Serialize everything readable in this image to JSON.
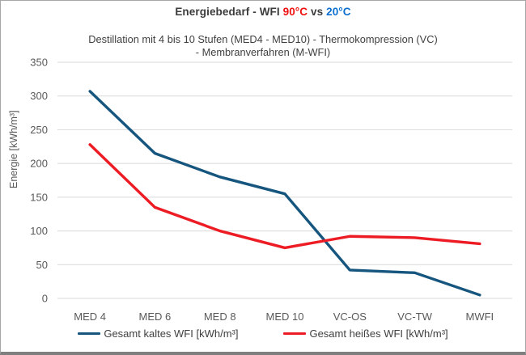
{
  "title": {
    "prefix": "Energiebedarf - WFI ",
    "hot": "90°C",
    "vs": " vs ",
    "cold": "20°C",
    "hot_color": "#ee1111",
    "cold_color": "#0b6fd0",
    "base_color": "#3b3b3b"
  },
  "subtitle": {
    "line1": "Destillation mit 4 bis 10 Stufen (MED4 - MED10) - Thermokompression (VC)",
    "line2": "- Membranverfahren (M-WFI)"
  },
  "chart_data": {
    "type": "line",
    "title": "Energiebedarf - WFI 90°C vs 20°C",
    "subtitle": "Destillation mit 4 bis 10 Stufen (MED4 - MED10) - Thermokompression (VC) - Membranverfahren (M-WFI)",
    "categories": [
      "MED 4",
      "MED 6",
      "MED 8",
      "MED 10",
      "VC-OS",
      "VC-TW",
      "MWFI"
    ],
    "series": [
      {
        "id": "kalt",
        "name": "Gesamt kaltes WFI [kWh/m³]",
        "color": "#16567e",
        "values": [
          307,
          215,
          180,
          155,
          42,
          38,
          5
        ]
      },
      {
        "id": "heiss",
        "name": "Gesamt heißes WFI [kWh/m³]",
        "color": "#ed1c24",
        "values": [
          228,
          135,
          100,
          75,
          92,
          90,
          81
        ]
      }
    ],
    "xlabel": "",
    "ylabel": "Energie [kWh/m³]",
    "ylim": [
      0,
      350
    ],
    "ytick_step": 50,
    "grid": true,
    "grid_color": "#d9d9d9",
    "axis_text_color": "#595959",
    "legend_position": "bottom"
  }
}
